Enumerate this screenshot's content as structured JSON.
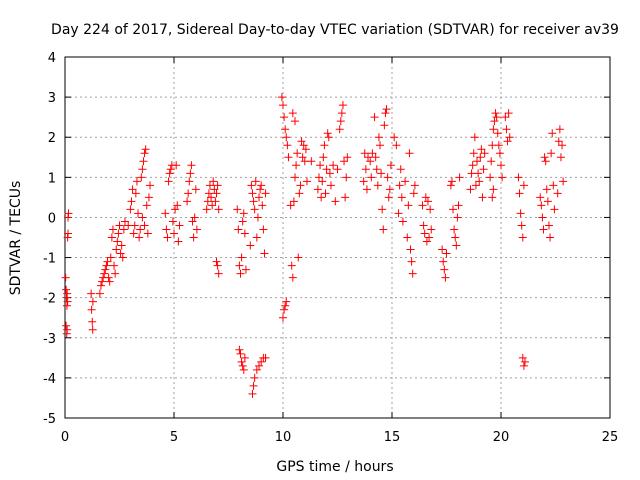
{
  "chart_data": {
    "type": "scatter",
    "title": "Day 224 of 2017, Sidereal Day-to-day VTEC variation (SDTVAR) for receiver av39",
    "xlabel": "GPS time / hours",
    "ylabel": "SDTVAR / TECUs",
    "xlim": [
      0,
      25
    ],
    "ylim": [
      -5,
      4
    ],
    "xticks": [
      "0",
      "5",
      "10",
      "15",
      "20",
      "25"
    ],
    "yticks": [
      "-5",
      "-4",
      "-3",
      "-2",
      "-1",
      "0",
      "1",
      "2",
      "3",
      "4"
    ],
    "grid": true,
    "marker": "plus",
    "color": "#ff0000",
    "series": [
      {
        "name": "SDTVAR",
        "points": [
          [
            0.03,
            -1.5
          ],
          [
            0.05,
            -1.8
          ],
          [
            0.07,
            -2.0
          ],
          [
            0.09,
            -2.2
          ],
          [
            0.1,
            -1.9
          ],
          [
            0.12,
            -2.1
          ],
          [
            0.05,
            -2.7
          ],
          [
            0.08,
            -2.9
          ],
          [
            0.1,
            -2.8
          ],
          [
            0.12,
            -0.5
          ],
          [
            0.14,
            0.0
          ],
          [
            0.16,
            0.1
          ],
          [
            0.14,
            -0.4
          ],
          [
            1.2,
            -1.9
          ],
          [
            1.22,
            -2.3
          ],
          [
            1.25,
            -2.6
          ],
          [
            1.27,
            -2.8
          ],
          [
            1.28,
            -2.1
          ],
          [
            1.6,
            -1.9
          ],
          [
            1.65,
            -1.7
          ],
          [
            1.7,
            -1.6
          ],
          [
            1.75,
            -1.5
          ],
          [
            1.8,
            -1.4
          ],
          [
            1.85,
            -1.3
          ],
          [
            1.9,
            -1.2
          ],
          [
            1.95,
            -1.1
          ],
          [
            2.0,
            -1.5
          ],
          [
            2.05,
            -1.6
          ],
          [
            2.1,
            -1.0
          ],
          [
            2.15,
            -0.5
          ],
          [
            2.2,
            -0.3
          ],
          [
            2.25,
            -1.2
          ],
          [
            2.3,
            -1.4
          ],
          [
            2.35,
            -0.8
          ],
          [
            2.4,
            -0.6
          ],
          [
            2.45,
            -0.4
          ],
          [
            2.5,
            -0.2
          ],
          [
            2.55,
            -0.9
          ],
          [
            2.6,
            -0.7
          ],
          [
            2.65,
            -1.0
          ],
          [
            2.7,
            -0.3
          ],
          [
            2.75,
            -0.1
          ],
          [
            2.9,
            -0.2
          ],
          [
            3.0,
            0.2
          ],
          [
            3.05,
            0.4
          ],
          [
            3.1,
            0.7
          ],
          [
            3.15,
            -0.4
          ],
          [
            3.2,
            -0.2
          ],
          [
            3.25,
            0.6
          ],
          [
            3.3,
            0.9
          ],
          [
            3.35,
            0.1
          ],
          [
            3.4,
            -0.5
          ],
          [
            3.45,
            -0.3
          ],
          [
            3.5,
            1.0
          ],
          [
            3.55,
            1.2
          ],
          [
            3.6,
            1.4
          ],
          [
            3.65,
            1.6
          ],
          [
            3.7,
            1.7
          ],
          [
            3.75,
            0.3
          ],
          [
            3.8,
            -0.4
          ],
          [
            3.85,
            0.5
          ],
          [
            3.9,
            0.8
          ],
          [
            3.55,
            0.0
          ],
          [
            3.65,
            -0.2
          ],
          [
            4.6,
            0.1
          ],
          [
            4.65,
            -0.3
          ],
          [
            4.7,
            -0.5
          ],
          [
            4.75,
            0.9
          ],
          [
            4.8,
            1.1
          ],
          [
            4.85,
            1.2
          ],
          [
            4.9,
            1.3
          ],
          [
            4.95,
            -0.1
          ],
          [
            5.0,
            -0.4
          ],
          [
            5.05,
            0.2
          ],
          [
            5.1,
            1.3
          ],
          [
            5.15,
            0.3
          ],
          [
            5.2,
            -0.6
          ],
          [
            5.25,
            -0.2
          ],
          [
            5.6,
            0.4
          ],
          [
            5.65,
            0.6
          ],
          [
            5.7,
            0.9
          ],
          [
            5.75,
            1.1
          ],
          [
            5.8,
            1.3
          ],
          [
            5.85,
            -0.1
          ],
          [
            5.9,
            -0.5
          ],
          [
            5.95,
            0.0
          ],
          [
            6.0,
            0.7
          ],
          [
            6.05,
            -0.3
          ],
          [
            6.5,
            0.2
          ],
          [
            6.55,
            0.4
          ],
          [
            6.6,
            0.6
          ],
          [
            6.65,
            0.8
          ],
          [
            6.7,
            0.5
          ],
          [
            6.75,
            0.3
          ],
          [
            6.8,
            0.9
          ],
          [
            6.85,
            0.7
          ],
          [
            6.9,
            0.4
          ],
          [
            6.95,
            0.6
          ],
          [
            7.0,
            0.8
          ],
          [
            7.05,
            0.2
          ],
          [
            6.95,
            -1.1
          ],
          [
            7.0,
            -1.2
          ],
          [
            7.05,
            -1.4
          ],
          [
            7.9,
            0.2
          ],
          [
            7.95,
            -0.3
          ],
          [
            8.0,
            -1.2
          ],
          [
            8.05,
            -1.4
          ],
          [
            8.1,
            -1.0
          ],
          [
            8.15,
            -0.1
          ],
          [
            8.2,
            0.1
          ],
          [
            8.25,
            -0.4
          ],
          [
            8.3,
            -1.3
          ],
          [
            8.0,
            -3.3
          ],
          [
            8.05,
            -3.4
          ],
          [
            8.1,
            -3.6
          ],
          [
            8.15,
            -3.7
          ],
          [
            8.2,
            -3.8
          ],
          [
            8.25,
            -3.5
          ],
          [
            8.5,
            -0.7
          ],
          [
            8.55,
            0.8
          ],
          [
            8.6,
            0.6
          ],
          [
            8.65,
            0.4
          ],
          [
            8.7,
            0.2
          ],
          [
            8.75,
            0.9
          ],
          [
            8.8,
            -0.5
          ],
          [
            8.85,
            0.0
          ],
          [
            8.9,
            0.5
          ],
          [
            8.95,
            0.7
          ],
          [
            9.0,
            0.8
          ],
          [
            9.05,
            0.3
          ],
          [
            9.1,
            -0.3
          ],
          [
            9.15,
            -0.9
          ],
          [
            9.2,
            0.6
          ],
          [
            8.6,
            -4.4
          ],
          [
            8.65,
            -4.2
          ],
          [
            8.7,
            -4.0
          ],
          [
            8.8,
            -3.8
          ],
          [
            8.9,
            -3.7
          ],
          [
            9.0,
            -3.6
          ],
          [
            9.1,
            -3.5
          ],
          [
            9.2,
            -3.5
          ],
          [
            9.95,
            3.0
          ],
          [
            10.0,
            2.8
          ],
          [
            10.05,
            2.5
          ],
          [
            10.1,
            2.2
          ],
          [
            10.15,
            2.0
          ],
          [
            10.2,
            1.8
          ],
          [
            10.25,
            1.5
          ],
          [
            10.0,
            -2.5
          ],
          [
            10.05,
            -2.3
          ],
          [
            10.1,
            -2.2
          ],
          [
            10.15,
            -2.1
          ],
          [
            10.35,
            0.3
          ],
          [
            10.4,
            -1.2
          ],
          [
            10.45,
            -1.5
          ],
          [
            10.5,
            0.4
          ],
          [
            10.55,
            1.0
          ],
          [
            10.6,
            1.3
          ],
          [
            10.65,
            1.6
          ],
          [
            10.7,
            -1.0
          ],
          [
            10.75,
            0.6
          ],
          [
            10.8,
            0.8
          ],
          [
            10.85,
            1.9
          ],
          [
            10.9,
            1.5
          ],
          [
            10.95,
            1.8
          ],
          [
            11.0,
            1.4
          ],
          [
            11.05,
            1.7
          ],
          [
            11.1,
            0.9
          ],
          [
            11.3,
            1.4
          ],
          [
            10.45,
            2.6
          ],
          [
            10.55,
            2.4
          ],
          [
            11.6,
            0.7
          ],
          [
            11.65,
            1.0
          ],
          [
            11.7,
            1.3
          ],
          [
            11.75,
            0.5
          ],
          [
            11.8,
            0.9
          ],
          [
            11.85,
            1.5
          ],
          [
            11.9,
            1.8
          ],
          [
            11.95,
            0.6
          ],
          [
            12.0,
            1.2
          ],
          [
            12.05,
            2.1
          ],
          [
            12.1,
            2.0
          ],
          [
            12.15,
            1.1
          ],
          [
            12.2,
            0.8
          ],
          [
            12.3,
            1.3
          ],
          [
            12.4,
            0.4
          ],
          [
            12.5,
            1.2
          ],
          [
            12.6,
            2.2
          ],
          [
            12.65,
            2.4
          ],
          [
            12.7,
            2.6
          ],
          [
            12.75,
            2.8
          ],
          [
            12.8,
            1.4
          ],
          [
            12.85,
            0.5
          ],
          [
            12.9,
            1.0
          ],
          [
            12.95,
            1.5
          ],
          [
            13.7,
            0.9
          ],
          [
            13.75,
            1.6
          ],
          [
            13.8,
            1.2
          ],
          [
            13.85,
            0.7
          ],
          [
            13.9,
            1.5
          ],
          [
            14.0,
            1.4
          ],
          [
            14.05,
            1.0
          ],
          [
            14.1,
            1.6
          ],
          [
            14.2,
            2.5
          ],
          [
            14.25,
            1.5
          ],
          [
            14.3,
            1.2
          ],
          [
            14.35,
            0.8
          ],
          [
            14.4,
            2.0
          ],
          [
            14.45,
            1.8
          ],
          [
            14.5,
            1.1
          ],
          [
            14.55,
            0.2
          ],
          [
            14.6,
            -0.3
          ],
          [
            14.65,
            2.3
          ],
          [
            14.7,
            2.6
          ],
          [
            14.75,
            2.7
          ],
          [
            14.8,
            1.0
          ],
          [
            14.85,
            0.5
          ],
          [
            14.9,
            0.7
          ],
          [
            14.95,
            1.3
          ],
          [
            15.1,
            2.0
          ],
          [
            15.2,
            1.8
          ],
          [
            15.3,
            0.1
          ],
          [
            15.35,
            0.8
          ],
          [
            15.4,
            1.2
          ],
          [
            15.45,
            0.5
          ],
          [
            15.5,
            -0.1
          ],
          [
            15.6,
            0.9
          ],
          [
            15.7,
            -0.5
          ],
          [
            15.75,
            0.3
          ],
          [
            15.8,
            1.6
          ],
          [
            15.85,
            -0.8
          ],
          [
            15.9,
            -1.1
          ],
          [
            15.95,
            -1.4
          ],
          [
            16.0,
            0.6
          ],
          [
            16.05,
            0.8
          ],
          [
            16.4,
            0.3
          ],
          [
            16.45,
            -0.2
          ],
          [
            16.5,
            -0.4
          ],
          [
            16.55,
            0.5
          ],
          [
            16.6,
            -0.6
          ],
          [
            16.65,
            0.4
          ],
          [
            16.7,
            -0.5
          ],
          [
            16.75,
            0.2
          ],
          [
            16.8,
            -0.3
          ],
          [
            17.3,
            -0.8
          ],
          [
            17.35,
            -1.1
          ],
          [
            17.4,
            -1.3
          ],
          [
            17.45,
            -1.5
          ],
          [
            17.5,
            -0.9
          ],
          [
            17.7,
            0.8
          ],
          [
            17.75,
            0.9
          ],
          [
            17.8,
            0.2
          ],
          [
            17.85,
            -0.3
          ],
          [
            17.9,
            -0.5
          ],
          [
            17.95,
            -0.7
          ],
          [
            18.0,
            0.0
          ],
          [
            18.05,
            0.3
          ],
          [
            18.1,
            1.0
          ],
          [
            18.6,
            0.7
          ],
          [
            18.65,
            1.1
          ],
          [
            18.7,
            1.3
          ],
          [
            18.75,
            1.6
          ],
          [
            18.8,
            2.0
          ],
          [
            18.85,
            0.8
          ],
          [
            18.9,
            1.4
          ],
          [
            18.95,
            1.1
          ],
          [
            19.0,
            0.9
          ],
          [
            19.05,
            1.5
          ],
          [
            19.1,
            1.7
          ],
          [
            19.15,
            0.5
          ],
          [
            19.2,
            1.2
          ],
          [
            19.25,
            1.6
          ],
          [
            19.5,
            1.0
          ],
          [
            19.55,
            1.4
          ],
          [
            19.6,
            1.8
          ],
          [
            19.65,
            2.2
          ],
          [
            19.7,
            2.4
          ],
          [
            19.75,
            2.6
          ],
          [
            19.8,
            2.5
          ],
          [
            19.85,
            2.1
          ],
          [
            19.9,
            1.8
          ],
          [
            19.95,
            1.6
          ],
          [
            20.0,
            1.3
          ],
          [
            20.05,
            1.0
          ],
          [
            19.6,
            0.5
          ],
          [
            19.65,
            0.7
          ],
          [
            20.2,
            2.5
          ],
          [
            20.25,
            2.2
          ],
          [
            20.3,
            1.9
          ],
          [
            20.35,
            2.6
          ],
          [
            20.4,
            2.0
          ],
          [
            20.8,
            1.0
          ],
          [
            20.85,
            0.6
          ],
          [
            20.9,
            0.1
          ],
          [
            20.95,
            -0.2
          ],
          [
            21.0,
            -0.5
          ],
          [
            21.05,
            0.8
          ],
          [
            21.0,
            -3.5
          ],
          [
            21.05,
            -3.7
          ],
          [
            21.1,
            -3.6
          ],
          [
            21.8,
            0.5
          ],
          [
            21.85,
            0.3
          ],
          [
            21.9,
            0.0
          ],
          [
            21.95,
            -0.3
          ],
          [
            22.0,
            1.5
          ],
          [
            22.05,
            1.4
          ],
          [
            22.1,
            0.7
          ],
          [
            22.15,
            0.4
          ],
          [
            22.2,
            -0.2
          ],
          [
            22.25,
            -0.5
          ],
          [
            22.3,
            1.6
          ],
          [
            22.35,
            2.1
          ],
          [
            22.4,
            0.8
          ],
          [
            22.45,
            0.2
          ],
          [
            22.6,
            0.6
          ],
          [
            22.65,
            1.9
          ],
          [
            22.7,
            2.2
          ],
          [
            22.75,
            1.5
          ],
          [
            22.8,
            1.8
          ],
          [
            22.85,
            0.9
          ]
        ]
      }
    ]
  }
}
